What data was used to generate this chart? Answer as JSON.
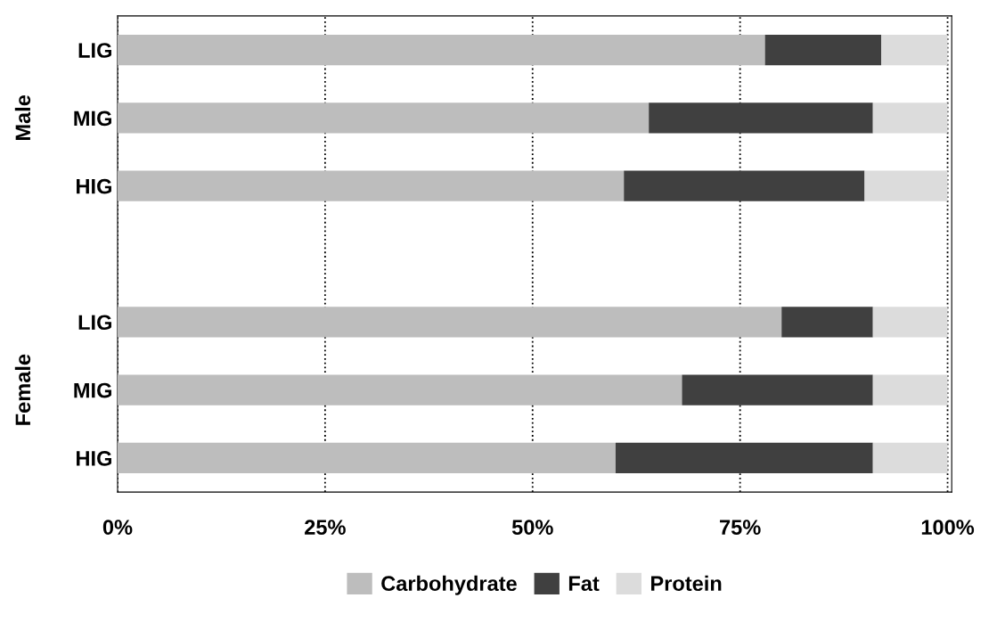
{
  "chart_data": {
    "type": "bar",
    "orientation": "horizontal",
    "stacked": true,
    "categories": [
      "LIG",
      "MIG",
      "HIG",
      null,
      "LIG",
      "MIG",
      "HIG"
    ],
    "series": [
      {
        "name": "Carbohydrate",
        "color": "#bdbdbd",
        "values": [
          78,
          64,
          61,
          null,
          80,
          68,
          60
        ]
      },
      {
        "name": "Fat",
        "color": "#404040",
        "values": [
          14,
          27,
          29,
          null,
          11,
          23,
          31
        ]
      },
      {
        "name": "Protein",
        "color": "#dcdcdc",
        "values": [
          8,
          9,
          10,
          null,
          9,
          9,
          9
        ]
      }
    ],
    "xlim": [
      0,
      100.5
    ],
    "xticks": [
      {
        "value": 0,
        "label": "0%"
      },
      {
        "value": 25,
        "label": "25%"
      },
      {
        "value": 50,
        "label": "50%"
      },
      {
        "value": 75,
        "label": "75%"
      },
      {
        "value": 100,
        "label": "100%"
      }
    ],
    "grid": "x",
    "line_style": "dotted",
    "legend": "bottom",
    "annotations": [
      "Male",
      "Female"
    ]
  }
}
